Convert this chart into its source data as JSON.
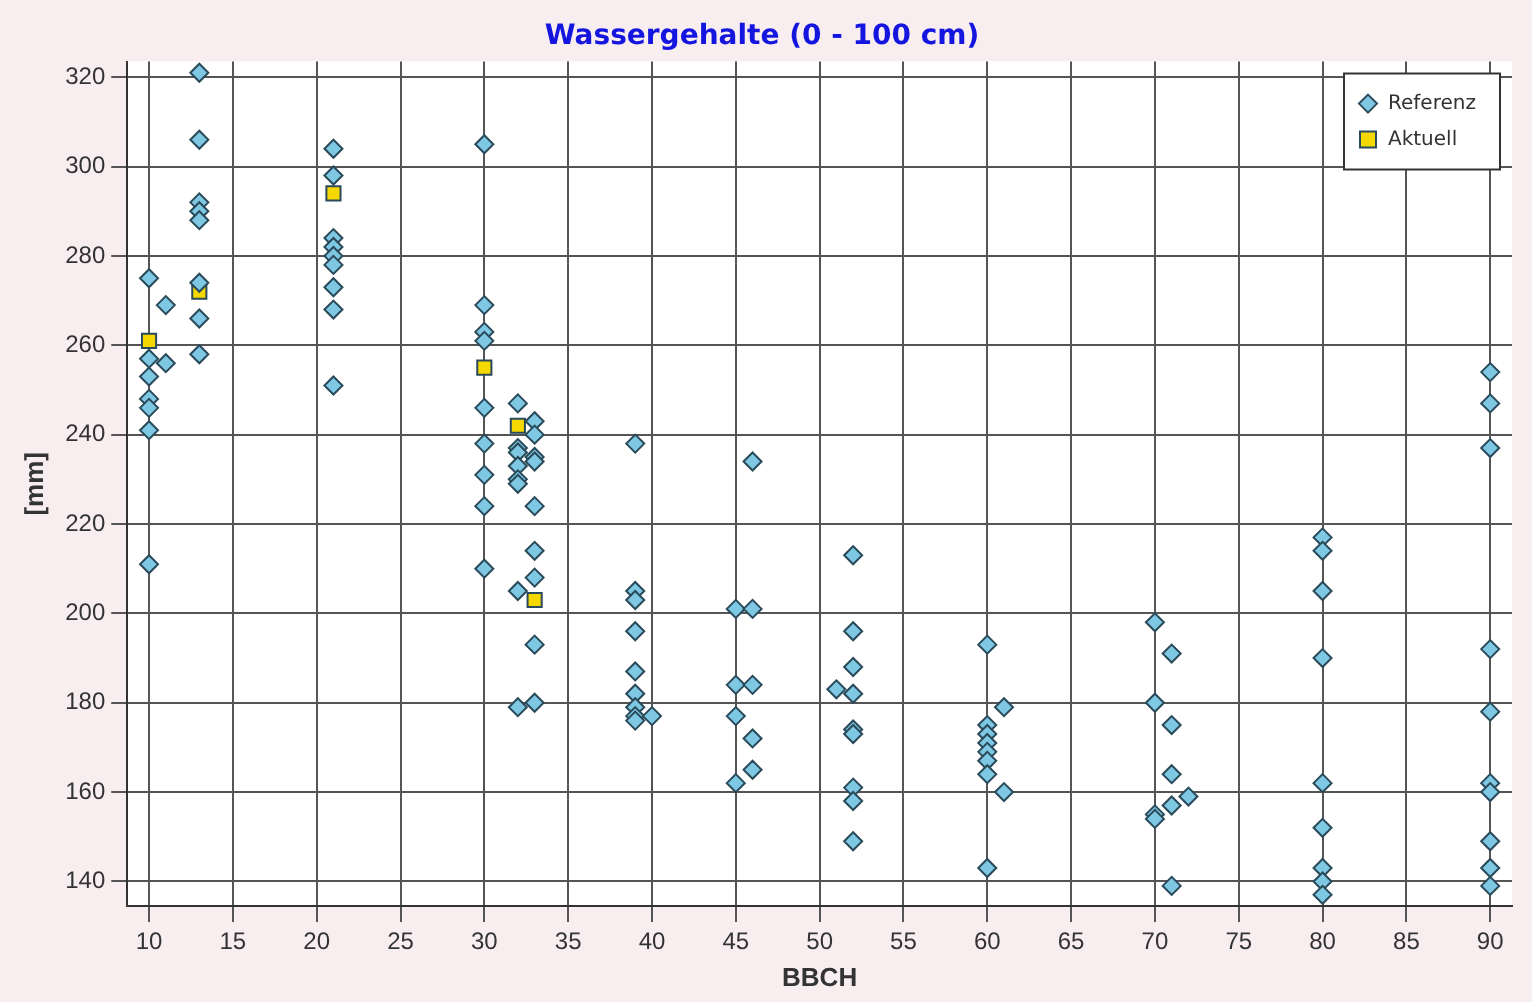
{
  "chart_data": {
    "type": "scatter",
    "title": "Wassergehalte (0 - 100 cm)",
    "xlabel": "BBCH",
    "ylabel": "[mm]",
    "xlim": [
      8.7,
      91.3
    ],
    "ylim": [
      134.5,
      323.5
    ],
    "xticks": [
      10,
      15,
      20,
      25,
      30,
      35,
      40,
      45,
      50,
      55,
      60,
      65,
      70,
      75,
      80,
      85,
      90
    ],
    "yticks": [
      140,
      160,
      180,
      200,
      220,
      240,
      260,
      280,
      300,
      320
    ],
    "grid": true,
    "legend": "top right",
    "series": [
      {
        "name": "Referenz",
        "color": "#7ec8e3",
        "marker": "diamond",
        "x": [
          10,
          10,
          10,
          10,
          10,
          10,
          10,
          11,
          11,
          13,
          13,
          13,
          13,
          13,
          13,
          13,
          13,
          21,
          21,
          21,
          21,
          21,
          21,
          21,
          21,
          21,
          30,
          30,
          30,
          30,
          30,
          30,
          30,
          30,
          30,
          32,
          32,
          32,
          32,
          32,
          32,
          32,
          32,
          33,
          33,
          33,
          33,
          33,
          33,
          33,
          33,
          33,
          39,
          39,
          39,
          39,
          39,
          39,
          39,
          39,
          39,
          40,
          45,
          45,
          45,
          45,
          46,
          46,
          46,
          46,
          46,
          51,
          52,
          52,
          52,
          52,
          52,
          52,
          52,
          52,
          52,
          60,
          60,
          60,
          60,
          60,
          60,
          60,
          60,
          61,
          61,
          70,
          70,
          70,
          70,
          71,
          71,
          71,
          71,
          71,
          72,
          80,
          80,
          80,
          80,
          80,
          80,
          80,
          80,
          80,
          90,
          90,
          90,
          90,
          90,
          90,
          90,
          90,
          90,
          90
        ],
        "values": [
          275,
          257,
          253,
          248,
          246,
          241,
          211,
          269,
          256,
          321,
          306,
          292,
          290,
          288,
          274,
          266,
          258,
          304,
          298,
          284,
          282,
          280,
          278,
          273,
          268,
          251,
          305,
          269,
          263,
          261,
          246,
          238,
          231,
          224,
          210,
          247,
          237,
          236,
          233,
          230,
          229,
          205,
          179,
          243,
          240,
          235,
          234,
          224,
          214,
          208,
          193,
          180,
          238,
          205,
          203,
          196,
          187,
          182,
          179,
          177,
          176,
          177,
          201,
          184,
          177,
          162,
          234,
          201,
          184,
          172,
          165,
          183,
          213,
          196,
          188,
          182,
          174,
          173,
          161,
          158,
          149,
          193,
          175,
          173,
          171,
          169,
          167,
          164,
          143,
          179,
          160,
          198,
          180,
          155,
          154,
          191,
          175,
          164,
          157,
          139,
          159,
          217,
          214,
          205,
          190,
          162,
          152,
          143,
          140,
          137,
          254,
          247,
          237,
          192,
          178,
          162,
          160,
          149,
          143,
          139
        ]
      },
      {
        "name": "Aktuell",
        "color": "#f5d800",
        "marker": "square",
        "x": [
          10,
          13,
          21,
          30,
          32,
          33
        ],
        "values": [
          261,
          272,
          294,
          255,
          242,
          203
        ]
      }
    ]
  }
}
